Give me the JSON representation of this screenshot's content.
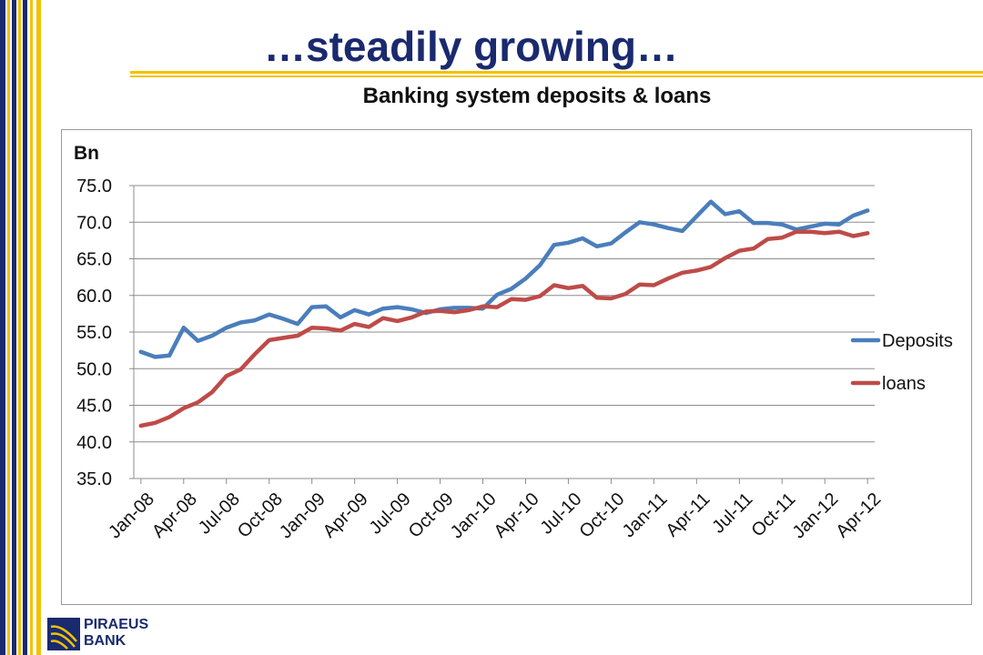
{
  "slide": {
    "title": "…steadily growing…",
    "subtitle": "Banking system deposits & loans",
    "colors": {
      "navy": "#1a2a6e",
      "gold": "#f2c200",
      "grid": "#8c8c8c",
      "deposits": "#4a7ebb",
      "loans": "#be4b48"
    }
  },
  "logo": {
    "line1": "PIRAEUS",
    "line2": "BANK"
  },
  "chart_data": {
    "type": "line",
    "ylabel": "Bn",
    "ylim": [
      35,
      75
    ],
    "yticks": [
      "75.0",
      "70.0",
      "65.0",
      "60.0",
      "55.0",
      "50.0",
      "45.0",
      "40.0",
      "35.0"
    ],
    "xtick_labels": [
      "Jan-08",
      "Apr-08",
      "Jul-08",
      "Oct-08",
      "Jan-09",
      "Apr-09",
      "Jul-09",
      "Oct-09",
      "Jan-10",
      "Apr-10",
      "Jul-10",
      "Oct-10",
      "Jan-11",
      "Apr-11",
      "Jul-11",
      "Oct-11",
      "Jan-12",
      "Apr-12"
    ],
    "x": [
      "Jan-08",
      "Feb-08",
      "Mar-08",
      "Apr-08",
      "May-08",
      "Jun-08",
      "Jul-08",
      "Aug-08",
      "Sep-08",
      "Oct-08",
      "Nov-08",
      "Dec-08",
      "Jan-09",
      "Feb-09",
      "Mar-09",
      "Apr-09",
      "May-09",
      "Jun-09",
      "Jul-09",
      "Aug-09",
      "Sep-09",
      "Oct-09",
      "Nov-09",
      "Dec-09",
      "Jan-10",
      "Feb-10",
      "Mar-10",
      "Apr-10",
      "May-10",
      "Jun-10",
      "Jul-10",
      "Aug-10",
      "Sep-10",
      "Oct-10",
      "Nov-10",
      "Dec-10",
      "Jan-11",
      "Feb-11",
      "Mar-11",
      "Apr-11",
      "May-11",
      "Jun-11",
      "Jul-11",
      "Aug-11",
      "Sep-11",
      "Oct-11",
      "Nov-11",
      "Dec-11",
      "Jan-12",
      "Feb-12",
      "Mar-12",
      "Apr-12"
    ],
    "series": [
      {
        "name": "Deposits",
        "color": "#4a7ebb",
        "values": [
          52.3,
          51.6,
          51.8,
          55.6,
          53.8,
          54.5,
          55.6,
          56.3,
          56.6,
          57.4,
          56.8,
          56.1,
          58.4,
          58.5,
          57.0,
          58.0,
          57.4,
          58.2,
          58.4,
          58.1,
          57.6,
          58.1,
          58.3,
          58.3,
          58.2,
          60.1,
          60.9,
          62.3,
          64.1,
          66.9,
          67.2,
          67.8,
          66.7,
          67.1,
          68.6,
          70.0,
          69.7,
          69.2,
          68.8,
          70.8,
          72.8,
          71.1,
          71.5,
          69.9,
          69.9,
          69.7,
          69.0,
          69.4,
          69.8,
          69.7,
          70.9,
          71.6
        ]
      },
      {
        "name": "loans",
        "color": "#be4b48",
        "values": [
          42.2,
          42.6,
          43.4,
          44.6,
          45.4,
          46.8,
          49.0,
          49.9,
          52.0,
          53.9,
          54.2,
          54.5,
          55.6,
          55.5,
          55.2,
          56.1,
          55.7,
          56.9,
          56.5,
          57.0,
          57.8,
          57.9,
          57.7,
          58.0,
          58.5,
          58.4,
          59.5,
          59.4,
          59.9,
          61.4,
          61.0,
          61.3,
          59.7,
          59.6,
          60.2,
          61.5,
          61.4,
          62.3,
          63.1,
          63.4,
          63.9,
          65.1,
          66.1,
          66.4,
          67.7,
          67.9,
          68.7,
          68.7,
          68.5,
          68.7,
          68.1,
          68.5
        ]
      }
    ],
    "legend": "right",
    "grid": true
  }
}
